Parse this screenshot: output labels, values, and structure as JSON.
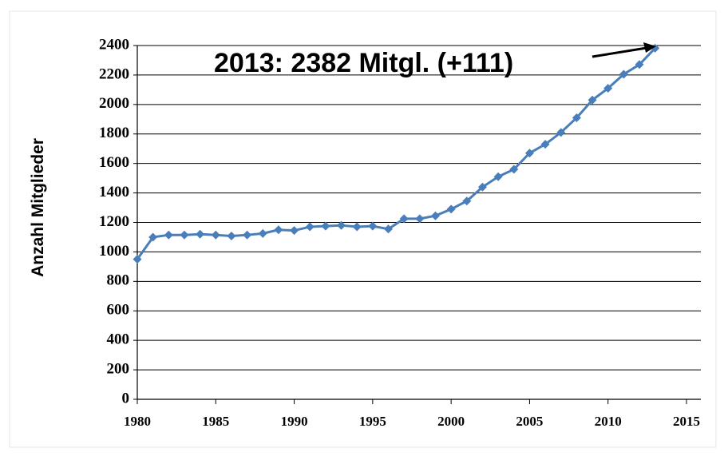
{
  "chart_data": {
    "type": "line",
    "y_label": "Anzahl Mitglieder",
    "annotation": "2013: 2382 Mitgl. (+111)",
    "x": [
      1980,
      1981,
      1982,
      1983,
      1984,
      1985,
      1986,
      1987,
      1988,
      1989,
      1990,
      1991,
      1992,
      1993,
      1994,
      1995,
      1996,
      1997,
      1998,
      1999,
      2000,
      2001,
      2002,
      2003,
      2004,
      2005,
      2006,
      2007,
      2008,
      2009,
      2010,
      2011,
      2012,
      2013
    ],
    "series": [
      {
        "color": "#4a7ebb",
        "values": [
          950,
          1100,
          1115,
          1115,
          1120,
          1115,
          1108,
          1115,
          1125,
          1150,
          1145,
          1170,
          1175,
          1180,
          1170,
          1175,
          1155,
          1225,
          1225,
          1245,
          1290,
          1345,
          1440,
          1510,
          1560,
          1670,
          1730,
          1810,
          1910,
          2030,
          2110,
          2205,
          2271,
          2382
        ]
      }
    ],
    "xlim": [
      1980,
      2015
    ],
    "xticks": [
      1980,
      1985,
      1990,
      1995,
      2000,
      2005,
      2010,
      2015
    ],
    "ylim": [
      0,
      2400
    ],
    "yticks": [
      0,
      200,
      400,
      600,
      800,
      1000,
      1200,
      1400,
      1600,
      1800,
      2000,
      2200,
      2400
    ],
    "grid": true
  }
}
